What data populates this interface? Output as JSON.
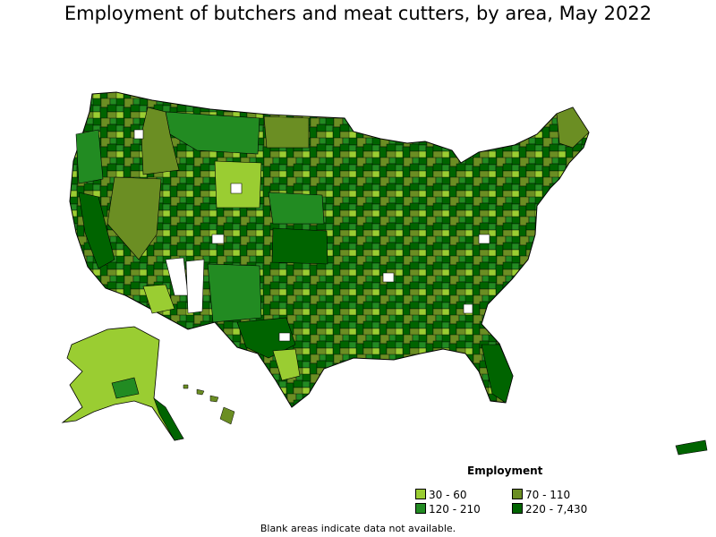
{
  "title": "Employment of butchers and meat cutters, by area, May 2022",
  "legend": {
    "title": "Employment",
    "items": [
      {
        "label": "30 - 60",
        "color": "#9acd32"
      },
      {
        "label": "70 - 110",
        "color": "#6b8e23"
      },
      {
        "label": "120 - 210",
        "color": "#228b22"
      },
      {
        "label": "220 - 7,430",
        "color": "#006400"
      }
    ]
  },
  "footnote": "Blank areas indicate data not available.",
  "colors": {
    "no_data": "#ffffff",
    "border": "#000000"
  }
}
